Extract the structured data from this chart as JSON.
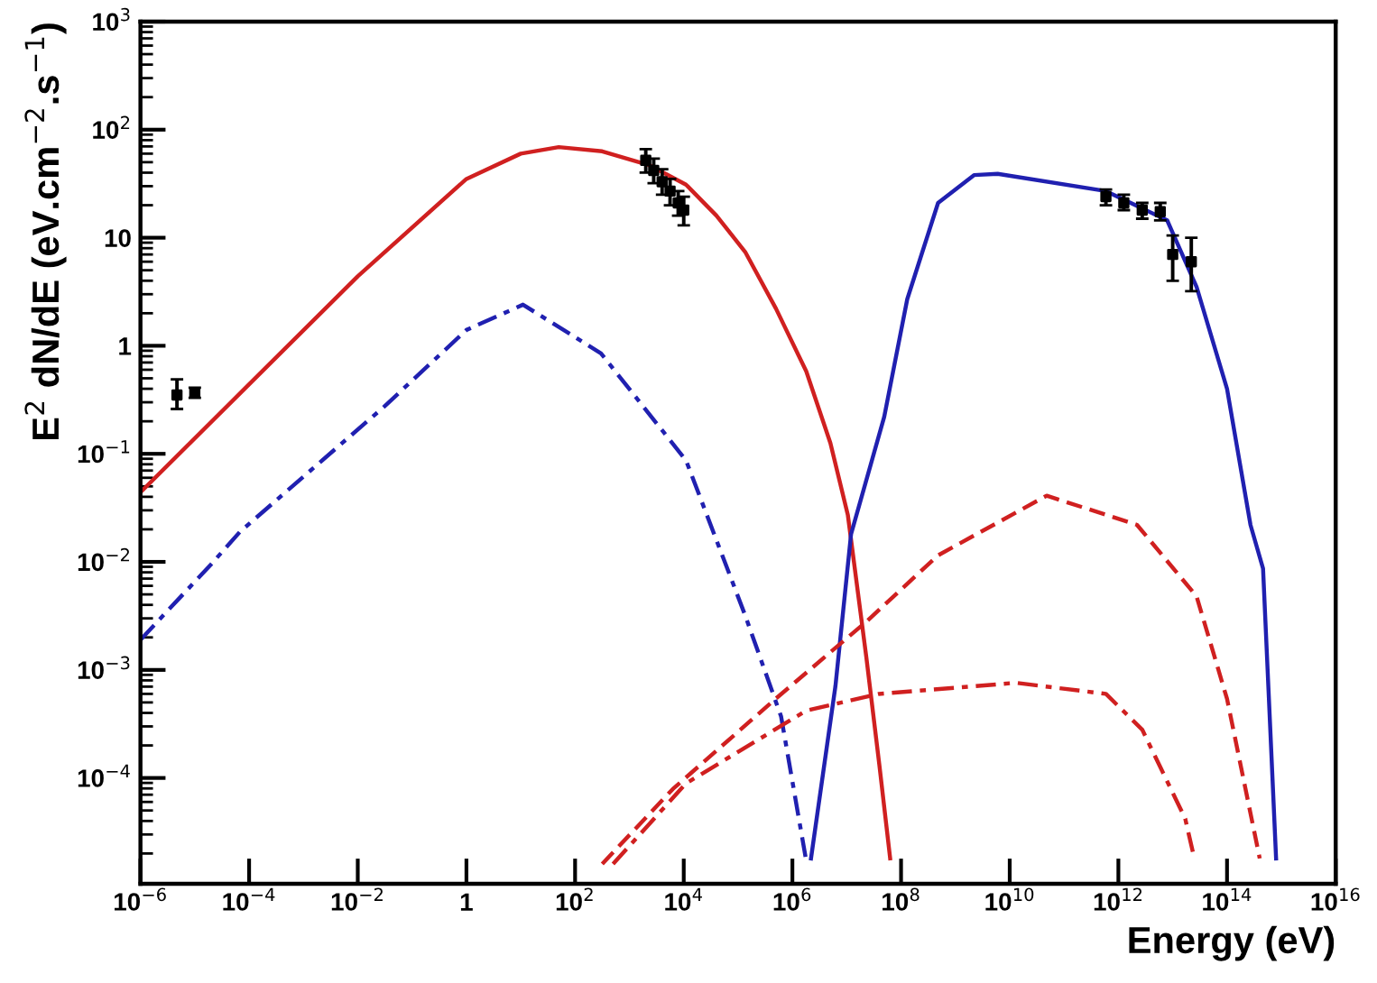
{
  "chart_data": {
    "type": "line",
    "xlabel": "Energy (eV)",
    "ylabel": "E$^{2}$ dN/dE (eV.cm$^{−2}$.s$^{−1}$)",
    "log": "xy",
    "grid": false,
    "line_style": "solid",
    "xlim": [
      1e-06,
      1e+16
    ],
    "ylim": [
      1.05e-05,
      1000
    ],
    "xticks": [
      {
        "value": 1e-06,
        "label": "10$^{−6}$"
      },
      {
        "value": 0.0001,
        "label": "10$^{−4}$"
      },
      {
        "value": 0.01,
        "label": "10$^{−2}$"
      },
      1,
      {
        "value": 100,
        "label": "10$^{2}$"
      },
      {
        "value": 10000.0,
        "label": "10$^{4}$"
      },
      {
        "value": 1000000.0,
        "label": "10$^{6}$"
      },
      {
        "value": 100000000.0,
        "label": "10$^{8}$"
      },
      {
        "value": 10000000000.0,
        "label": "10$^{10}$"
      },
      {
        "value": 1000000000000.0,
        "label": "10$^{12}$"
      },
      {
        "value": 100000000000000.0,
        "label": "10$^{14}$"
      },
      {
        "value": 1e+16,
        "label": "10$^{16}$"
      }
    ],
    "yticks": [
      {
        "value": 0.0001,
        "label": "10$^{−4}$"
      },
      {
        "value": 0.001,
        "label": "10$^{−3}$"
      },
      {
        "value": 0.01,
        "label": "10$^{−2}$"
      },
      {
        "value": 0.1,
        "label": "10$^{−1}$"
      },
      1,
      10,
      {
        "value": 100,
        "label": "10$^{2}$"
      },
      {
        "value": 1000,
        "label": "10$^{3}$"
      }
    ],
    "series": [
      {
        "color": "#d02020",
        "x": [
          1e-06,
          0.0001,
          0.01,
          1,
          10,
          50,
          316,
          2300,
          11000,
          40000,
          135000,
          500000,
          1800000,
          5000000,
          10500000,
          23000000,
          40000000,
          63000000
        ],
        "values": [
          0.044,
          0.44,
          4.4,
          35,
          60,
          69,
          63,
          47,
          31,
          16,
          7.4,
          2.2,
          0.58,
          0.126,
          0.027,
          0.0013,
          0.00013,
          1.8e-05
        ]
      },
      {
        "color": "#2020b0",
        "x": [
          2200000,
          6200000,
          12000000,
          49000000,
          130000000,
          480000000,
          2200000000,
          6000000000,
          590000000000.0,
          7900000000000.0,
          27500000000000.0,
          100000000000000.0,
          270000000000000.0,
          460000000000000.0,
          800000000000000.0
        ],
        "values": [
          1.8e-05,
          0.00071,
          0.018,
          0.22,
          2.7,
          21,
          38,
          39,
          27,
          14.5,
          3.5,
          0.4,
          0.022,
          0.0087,
          1.8e-05
        ]
      },
      {
        "color": "#2020b0",
        "line_style": "dashdot",
        "x": [
          1e-06,
          2e-05,
          6.8e-05,
          0.031,
          1,
          11,
          300,
          11000,
          135000,
          620000,
          1800000
        ],
        "values": [
          0.0019,
          0.0095,
          0.019,
          0.275,
          1.4,
          2.4,
          0.85,
          0.087,
          0.0032,
          0.00037,
          1.7e-05
        ]
      },
      {
        "color": "#d02020",
        "line_style": "dashed",
        "x": [
          316,
          6300,
          490000,
          23000000,
          480000000,
          48000000000,
          2200000000000.0,
          27500000000000.0,
          100000000000000.0,
          400000000000000.0
        ],
        "values": [
          1.6e-05,
          7.9e-05,
          0.00054,
          0.0028,
          0.0115,
          0.041,
          0.022,
          0.0048,
          0.00054,
          1.8e-05
        ]
      },
      {
        "color": "#d02020",
        "line_style": "dashdot",
        "x": [
          500,
          11000,
          1800000,
          39000000,
          13000000000,
          590000000000.0,
          2750000000000.0,
          17000000000000.0,
          25000000000000.0
        ],
        "values": [
          1.6e-05,
          8.9e-05,
          0.00042,
          0.0006,
          0.00076,
          0.0006,
          0.00028,
          4.2e-05,
          1.8e-05
        ]
      },
      {
        "type": "scatter",
        "marker": "square",
        "color": "#000000",
        "x": [
          4.7e-06,
          1e-05
        ],
        "values": [
          0.35,
          0.37
        ],
        "errors": [
          [
            0.26,
            0.49
          ],
          [
            0.33,
            0.41
          ]
        ]
      },
      {
        "type": "scatter",
        "marker": "square",
        "color": "#000000",
        "x": [
          2000,
          2800,
          4000,
          5600,
          7900,
          10000
        ],
        "values": [
          52,
          42,
          33,
          27,
          21,
          18
        ],
        "errors": [
          [
            40,
            66
          ],
          [
            32,
            54
          ],
          [
            25,
            43
          ],
          [
            20,
            35
          ],
          [
            16,
            27
          ],
          [
            13,
            24
          ]
        ]
      },
      {
        "type": "scatter",
        "marker": "square",
        "color": "#000000",
        "x": [
          590000000000.0,
          1260000000000.0,
          2750000000000.0,
          5900000000000.0,
          10000000000000.0,
          22000000000000.0
        ],
        "values": [
          24,
          21,
          18,
          17.4,
          7,
          6
        ],
        "errors": [
          [
            20,
            28
          ],
          [
            18,
            25
          ],
          [
            15,
            21
          ],
          [
            14.5,
            21
          ],
          [
            4,
            10.5
          ],
          [
            3.2,
            10
          ]
        ]
      }
    ]
  }
}
